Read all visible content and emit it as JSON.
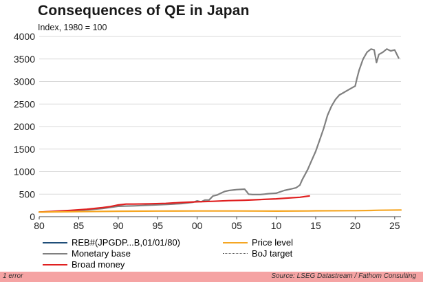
{
  "header": {
    "title": "Consequences of QE in Japan",
    "subtitle": "Index, 1980 = 100"
  },
  "footer": {
    "status": "1 error",
    "source": "Source: LSEG Datastream / Fathom Consulting",
    "background_color": "#f5a3a3"
  },
  "legend": {
    "items": [
      {
        "label": "REB#(JPGDP...B,01/01/80)",
        "color": "#1f4e79",
        "style": "solid"
      },
      {
        "label": "Price level",
        "color": "#f5a623",
        "style": "solid"
      },
      {
        "label": "Monetary base",
        "color": "#808080",
        "style": "solid"
      },
      {
        "label": "BoJ target",
        "color": "#555555",
        "style": "dotted"
      },
      {
        "label": "Broad money",
        "color": "#e02020",
        "style": "solid"
      }
    ]
  },
  "chart_data": {
    "type": "line",
    "title": "Consequences of QE in Japan",
    "ylabel": "Index, 1980 = 100",
    "xlabel": "",
    "xlim": [
      1980,
      2025.8
    ],
    "ylim": [
      0,
      4000
    ],
    "xticks": [
      1980,
      1985,
      1990,
      1995,
      2000,
      2005,
      2010,
      2015,
      2020,
      2025
    ],
    "xtick_labels": [
      "80",
      "85",
      "90",
      "95",
      "00",
      "05",
      "10",
      "15",
      "20",
      "25"
    ],
    "yticks": [
      0,
      500,
      1000,
      1500,
      2000,
      2500,
      3000,
      3500,
      4000
    ],
    "ytick_labels": [
      "0",
      "500",
      "1000",
      "1500",
      "2000",
      "2500",
      "3000",
      "3500",
      "4000"
    ],
    "grid": "horizontal",
    "series": [
      {
        "name": "Monetary base",
        "color": "#808080",
        "x": [
          1980,
          1982,
          1984,
          1986,
          1988,
          1990,
          1992,
          1994,
          1996,
          1998,
          1999.5,
          2000,
          2000.5,
          2001,
          2001.5,
          2002,
          2002.5,
          2003,
          2003.5,
          2004,
          2005,
          2006,
          2006.3,
          2006.5,
          2007,
          2008,
          2008.5,
          2009,
          2010,
          2011,
          2011.5,
          2012,
          2012.5,
          2013,
          2013.3,
          2013.7,
          2014,
          2014.5,
          2015,
          2015.5,
          2016,
          2016.5,
          2017,
          2017.5,
          2018,
          2018.5,
          2019,
          2019.5,
          2020,
          2020.2,
          2020.5,
          2021,
          2021.5,
          2022,
          2022.4,
          2022.7,
          2023,
          2023.5,
          2024,
          2024.5,
          2025,
          2025.5
        ],
        "values": [
          100,
          115,
          130,
          150,
          180,
          230,
          240,
          255,
          270,
          290,
          320,
          350,
          330,
          370,
          370,
          460,
          480,
          520,
          560,
          580,
          600,
          610,
          550,
          500,
          490,
          490,
          500,
          510,
          520,
          580,
          600,
          620,
          640,
          700,
          820,
          950,
          1050,
          1250,
          1450,
          1700,
          1950,
          2250,
          2450,
          2600,
          2700,
          2750,
          2800,
          2850,
          2900,
          3050,
          3250,
          3500,
          3650,
          3720,
          3700,
          3420,
          3600,
          3650,
          3720,
          3680,
          3700,
          3520
        ]
      },
      {
        "name": "Broad money",
        "color": "#e02020",
        "x": [
          1980,
          1982,
          1984,
          1986,
          1988,
          1989,
          1990,
          1991,
          1992,
          1994,
          1996,
          1998,
          2000,
          2002,
          2004,
          2006,
          2008,
          2010,
          2012,
          2013,
          2014.2
        ],
        "values": [
          100,
          120,
          140,
          165,
          200,
          225,
          260,
          280,
          280,
          285,
          295,
          315,
          330,
          340,
          355,
          365,
          380,
          395,
          420,
          430,
          460
        ]
      },
      {
        "name": "Price level",
        "color": "#f5a623",
        "x": [
          1980,
          1985,
          1990,
          1995,
          2000,
          2005,
          2010,
          2014,
          2015,
          2020,
          2022,
          2023,
          2025.8
        ],
        "values": [
          100,
          112,
          120,
          125,
          127,
          126,
          124,
          126,
          130,
          133,
          137,
          142,
          148
        ]
      }
    ]
  }
}
